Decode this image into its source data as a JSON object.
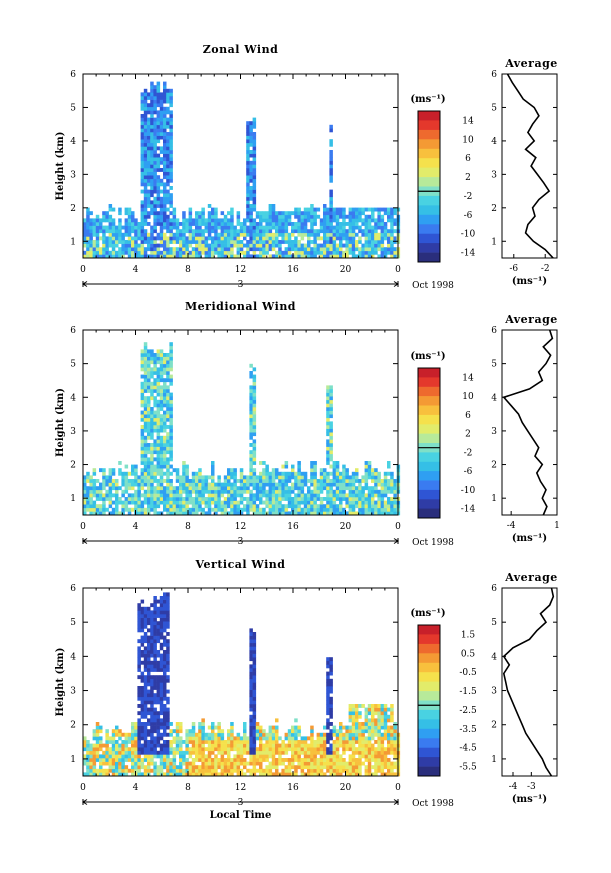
{
  "chart_data": [
    {
      "type": "heatmap",
      "title": "Zonal Wind",
      "ylabel": "Height (km)",
      "xticks": [
        "0",
        "4",
        "8",
        "12",
        "16",
        "20",
        "0"
      ],
      "yticks": [
        "1",
        "2",
        "3",
        "4",
        "5",
        "6"
      ],
      "xlim": [
        0,
        24
      ],
      "ylim": [
        0.5,
        6
      ],
      "date_day": "3",
      "date_label": "Oct 1998",
      "colorbar": {
        "unit": "(ms⁻¹)",
        "ticks": [
          "14",
          "10",
          "6",
          "2",
          "-2",
          "-6",
          "-10",
          "-14"
        ],
        "range": [
          -16,
          16
        ]
      },
      "profile": {
        "title": "Average",
        "xlabel": "(ms⁻¹)",
        "xticks": [
          "-6",
          "-2"
        ],
        "xlim": [
          -7.5,
          -0.5
        ],
        "heights": [
          0.5,
          0.75,
          1,
          1.25,
          1.5,
          1.75,
          2,
          2.25,
          2.5,
          2.75,
          3,
          3.25,
          3.5,
          3.75,
          4,
          4.25,
          4.5,
          4.75,
          5,
          5.25,
          5.5,
          5.75,
          6
        ],
        "values": [
          -1,
          -2,
          -3.5,
          -4.5,
          -4.2,
          -3.3,
          -3.6,
          -2.8,
          -1.5,
          -2.2,
          -3,
          -3.8,
          -3.2,
          -4.5,
          -3.4,
          -4.2,
          -3.6,
          -2.8,
          -3.4,
          -4.8,
          -5.5,
          -6.2,
          -6.8
        ]
      },
      "cells_seed": 11
    },
    {
      "type": "heatmap",
      "title": "Meridional Wind",
      "ylabel": "Height (km)",
      "xticks": [
        "0",
        "4",
        "8",
        "12",
        "16",
        "20",
        "0"
      ],
      "yticks": [
        "1",
        "2",
        "3",
        "4",
        "5",
        "6"
      ],
      "xlim": [
        0,
        24
      ],
      "ylim": [
        0.5,
        6
      ],
      "date_day": "3",
      "date_label": "Oct 1998",
      "colorbar": {
        "unit": "(ms⁻¹)",
        "ticks": [
          "14",
          "10",
          "6",
          "2",
          "-2",
          "-6",
          "-10",
          "-14"
        ],
        "range": [
          -16,
          16
        ]
      },
      "profile": {
        "title": "Average",
        "xlabel": "(ms⁻¹)",
        "xticks": [
          "-4",
          "1"
        ],
        "xlim": [
          -5,
          1
        ],
        "heights": [
          0.5,
          0.75,
          1,
          1.25,
          1.5,
          1.75,
          2,
          2.25,
          2.5,
          2.75,
          3,
          3.25,
          3.5,
          3.75,
          4,
          4.25,
          4.5,
          4.75,
          5,
          5.25,
          5.5,
          5.75,
          6
        ],
        "values": [
          -0.5,
          -0.1,
          -0.6,
          -0.2,
          -0.8,
          -1.2,
          -0.6,
          -1.4,
          -1.0,
          -1.6,
          -2.2,
          -2.8,
          -3.2,
          -4.0,
          -4.8,
          -2.0,
          -0.6,
          -1.0,
          -0.2,
          0.3,
          -0.5,
          0.5,
          0.2
        ]
      },
      "cells_seed": 23
    },
    {
      "type": "heatmap",
      "title": "Vertical Wind",
      "ylabel": "Height (km)",
      "xlabel": "Local Time",
      "xticks": [
        "0",
        "4",
        "8",
        "12",
        "16",
        "20",
        "0"
      ],
      "yticks": [
        "1",
        "2",
        "3",
        "4",
        "5",
        "6"
      ],
      "xlim": [
        0,
        24
      ],
      "ylim": [
        0.5,
        6
      ],
      "date_day": "3",
      "date_label": "Oct 1998",
      "colorbar": {
        "unit": "(ms⁻¹)",
        "ticks": [
          "1.5",
          "0.5",
          "-0.5",
          "-1.5",
          "-2.5",
          "-3.5",
          "-4.5",
          "-5.5"
        ],
        "range": [
          -6,
          2
        ]
      },
      "profile": {
        "title": "Average",
        "xlabel": "(ms⁻¹)",
        "xticks": [
          "-4",
          "-3"
        ],
        "xlim": [
          -4.6,
          -1.6
        ],
        "heights": [
          0.5,
          0.75,
          1,
          1.25,
          1.5,
          1.75,
          2,
          2.25,
          2.5,
          2.75,
          3,
          3.25,
          3.5,
          3.75,
          4,
          4.25,
          4.5,
          4.75,
          5,
          5.25,
          5.5,
          5.75,
          6
        ],
        "values": [
          -1.9,
          -2.2,
          -2.4,
          -2.7,
          -3.0,
          -3.3,
          -3.5,
          -3.7,
          -3.9,
          -4.1,
          -4.3,
          -4.4,
          -4.5,
          -4.2,
          -4.5,
          -4.0,
          -3.1,
          -2.7,
          -2.2,
          -2.5,
          -2.0,
          -1.8,
          -1.9
        ]
      },
      "cells_seed": 37
    }
  ]
}
